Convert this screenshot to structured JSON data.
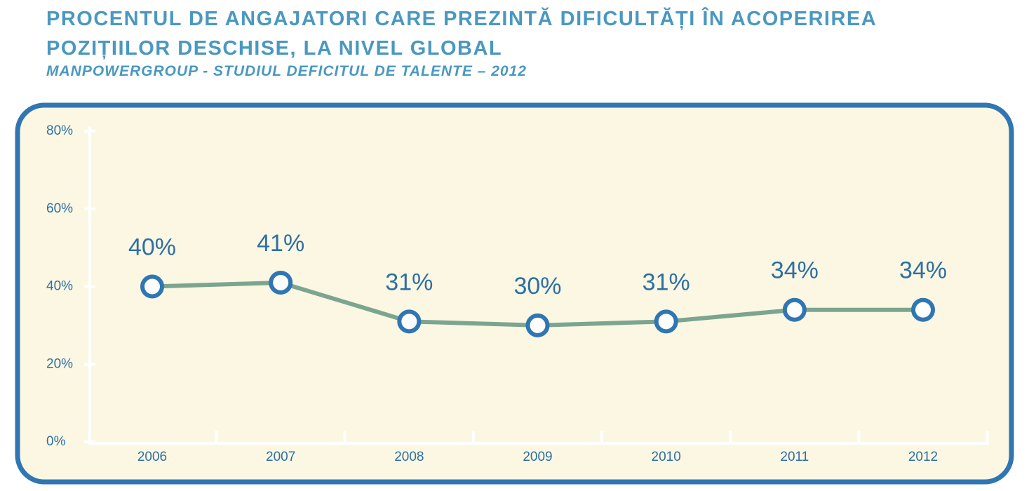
{
  "chart_data": {
    "type": "line",
    "title": "PROCENTUL DE ANGAJATORI CARE PREZINTĂ DIFICULTĂȚI ÎN ACOPERIREA POZIȚIILOR DESCHISE, LA NIVEL GLOBAL",
    "subtitle": "MANPOWERGROUP - STUDIUL DEFICITUL DE TALENTE – 2012",
    "categories": [
      "2006",
      "2007",
      "2008",
      "2009",
      "2010",
      "2011",
      "2012"
    ],
    "series": [
      {
        "color": "#7ba58f",
        "values": [
          40,
          41,
          31,
          30,
          31,
          34,
          34
        ],
        "value_labels": [
          "40%",
          "41%",
          "31%",
          "30%",
          "31%",
          "34%",
          "34%"
        ]
      }
    ],
    "ylim": [
      0,
      80
    ],
    "yticks": [
      {
        "value": 0,
        "label": "0%"
      },
      {
        "value": 20,
        "label": "20%"
      },
      {
        "value": 40,
        "label": "40%"
      },
      {
        "value": 60,
        "label": "60%"
      },
      {
        "value": 80,
        "label": "80%"
      }
    ],
    "grid": false
  }
}
